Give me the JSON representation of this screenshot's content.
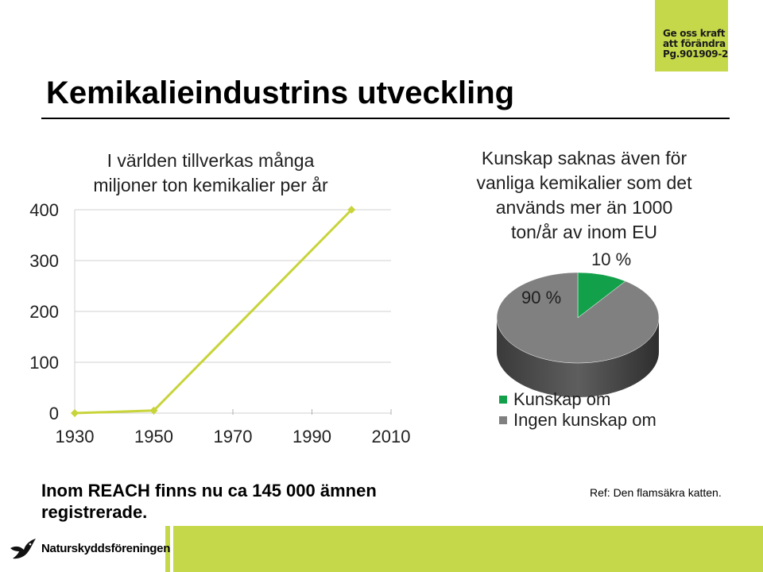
{
  "badge": {
    "lines": [
      "Ge oss kraft",
      "att förändra",
      "Pg.901909-2"
    ]
  },
  "slide_title": "Kemikalieindustrins utveckling",
  "chart_data": [
    {
      "type": "line",
      "title_lines": [
        "I världen tillverkas många",
        "miljoner ton kemikalier per år"
      ],
      "x": [
        1930,
        1950,
        2000
      ],
      "y": [
        0,
        5,
        400
      ],
      "xticks": [
        "1930",
        "1950",
        "1970",
        "1990",
        "2010"
      ],
      "yticks": [
        "0",
        "100",
        "200",
        "300",
        "400"
      ],
      "xlim": [
        1930,
        2010
      ],
      "ylim": [
        0,
        400
      ],
      "grid": true,
      "color": "#c8d43a"
    },
    {
      "type": "pie",
      "title_lines": [
        "Kunskap saknas även för",
        "vanliga kemikalier som det",
        "används mer än 1000",
        "ton/år av inom EU"
      ],
      "slices": [
        {
          "label": "Kunskap om",
          "value": 10,
          "display": "10 %",
          "color": "#12a04a"
        },
        {
          "label": "Ingen kunskap om",
          "value": 90,
          "display": "90 %",
          "color": "#808080"
        }
      ],
      "legend_position": "bottom"
    }
  ],
  "footnote": "Inom REACH finns nu ca 145 000 ämnen registrerade.",
  "reference": "Ref: Den flamsäkra katten.",
  "logo": {
    "text": "Naturskyddsföreningen",
    "icon": "bird-icon"
  }
}
